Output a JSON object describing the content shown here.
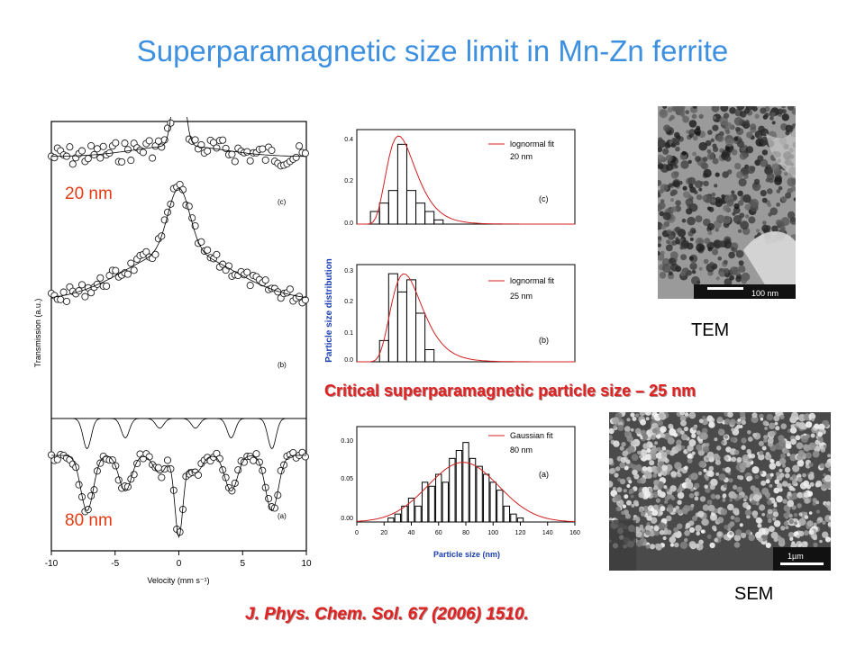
{
  "title": "Superparamagnetic size limit in Mn-Zn ferrite",
  "mossbauer": {
    "ylabel": "Transmission (a.u.)",
    "xlabel": "Velocity (mm s⁻¹)",
    "xticks": [
      "-10",
      "-5",
      "0",
      "5",
      "10"
    ],
    "panel_labels": [
      "(c)",
      "(b)",
      "(a)"
    ],
    "size_top": "20 nm",
    "size_bottom": "80 nm"
  },
  "hist_c": {
    "legend": [
      "lognormal fit",
      "20 nm"
    ],
    "label": "(c)",
    "yticks": [
      "0.4",
      "0.2",
      "0.0"
    ]
  },
  "hist_b": {
    "legend": [
      "lognormal fit",
      "25 nm"
    ],
    "label": "(b)",
    "yticks": [
      "0.3",
      "0.2",
      "0.1",
      "0.0"
    ]
  },
  "hist_a": {
    "legend": [
      "Gaussian fit",
      "80 nm"
    ],
    "label": "(a)",
    "yticks": [
      "0.10",
      "0.05",
      "0.00"
    ],
    "xticks": [
      "0",
      "20",
      "40",
      "60",
      "80",
      "100",
      "120",
      "140",
      "160"
    ],
    "xlabel": "Particle size (nm)"
  },
  "hist_ylabel": "Particle size distribution",
  "critical": "Critical superparamagnetic particle size – 25 nm",
  "citation": "J. Phys. Chem. Sol. 67 (2006) 1510.",
  "tem": {
    "label": "TEM",
    "scalebar": "100 nm"
  },
  "sem": {
    "label": "SEM",
    "scalebar": "1µm"
  },
  "chart_data": [
    {
      "type": "bar",
      "title": "(c)",
      "x": [
        10,
        15,
        20,
        25,
        30,
        35,
        40,
        45
      ],
      "values": [
        0.06,
        0.1,
        0.16,
        0.38,
        0.16,
        0.1,
        0.06,
        0.02
      ],
      "fit": "lognormal fit",
      "fit_peak": 23,
      "ylim": [
        0,
        0.45
      ]
    },
    {
      "type": "bar",
      "title": "(b)",
      "x": [
        15,
        20,
        25,
        30,
        35,
        40
      ],
      "values": [
        0.07,
        0.29,
        0.23,
        0.27,
        0.16,
        0.04
      ],
      "fit": "lognormal fit",
      "fit_peak": 26,
      "ylim": [
        0,
        0.32
      ]
    },
    {
      "type": "bar",
      "title": "(a)",
      "xlabel": "Particle size (nm)",
      "ylabel": "Particle size distribution",
      "x": [
        25,
        30,
        35,
        40,
        45,
        50,
        55,
        60,
        65,
        70,
        75,
        80,
        85,
        90,
        95,
        100,
        105,
        110,
        115,
        120
      ],
      "values": [
        0.005,
        0.01,
        0.02,
        0.03,
        0.02,
        0.05,
        0.045,
        0.06,
        0.05,
        0.08,
        0.09,
        0.1,
        0.08,
        0.07,
        0.06,
        0.05,
        0.04,
        0.02,
        0.01,
        0.005
      ],
      "fit": "Gaussian fit",
      "fit_center": 78,
      "fit_peak": 0.075,
      "xlim": [
        0,
        160
      ],
      "ylim": [
        0,
        0.12
      ]
    }
  ]
}
